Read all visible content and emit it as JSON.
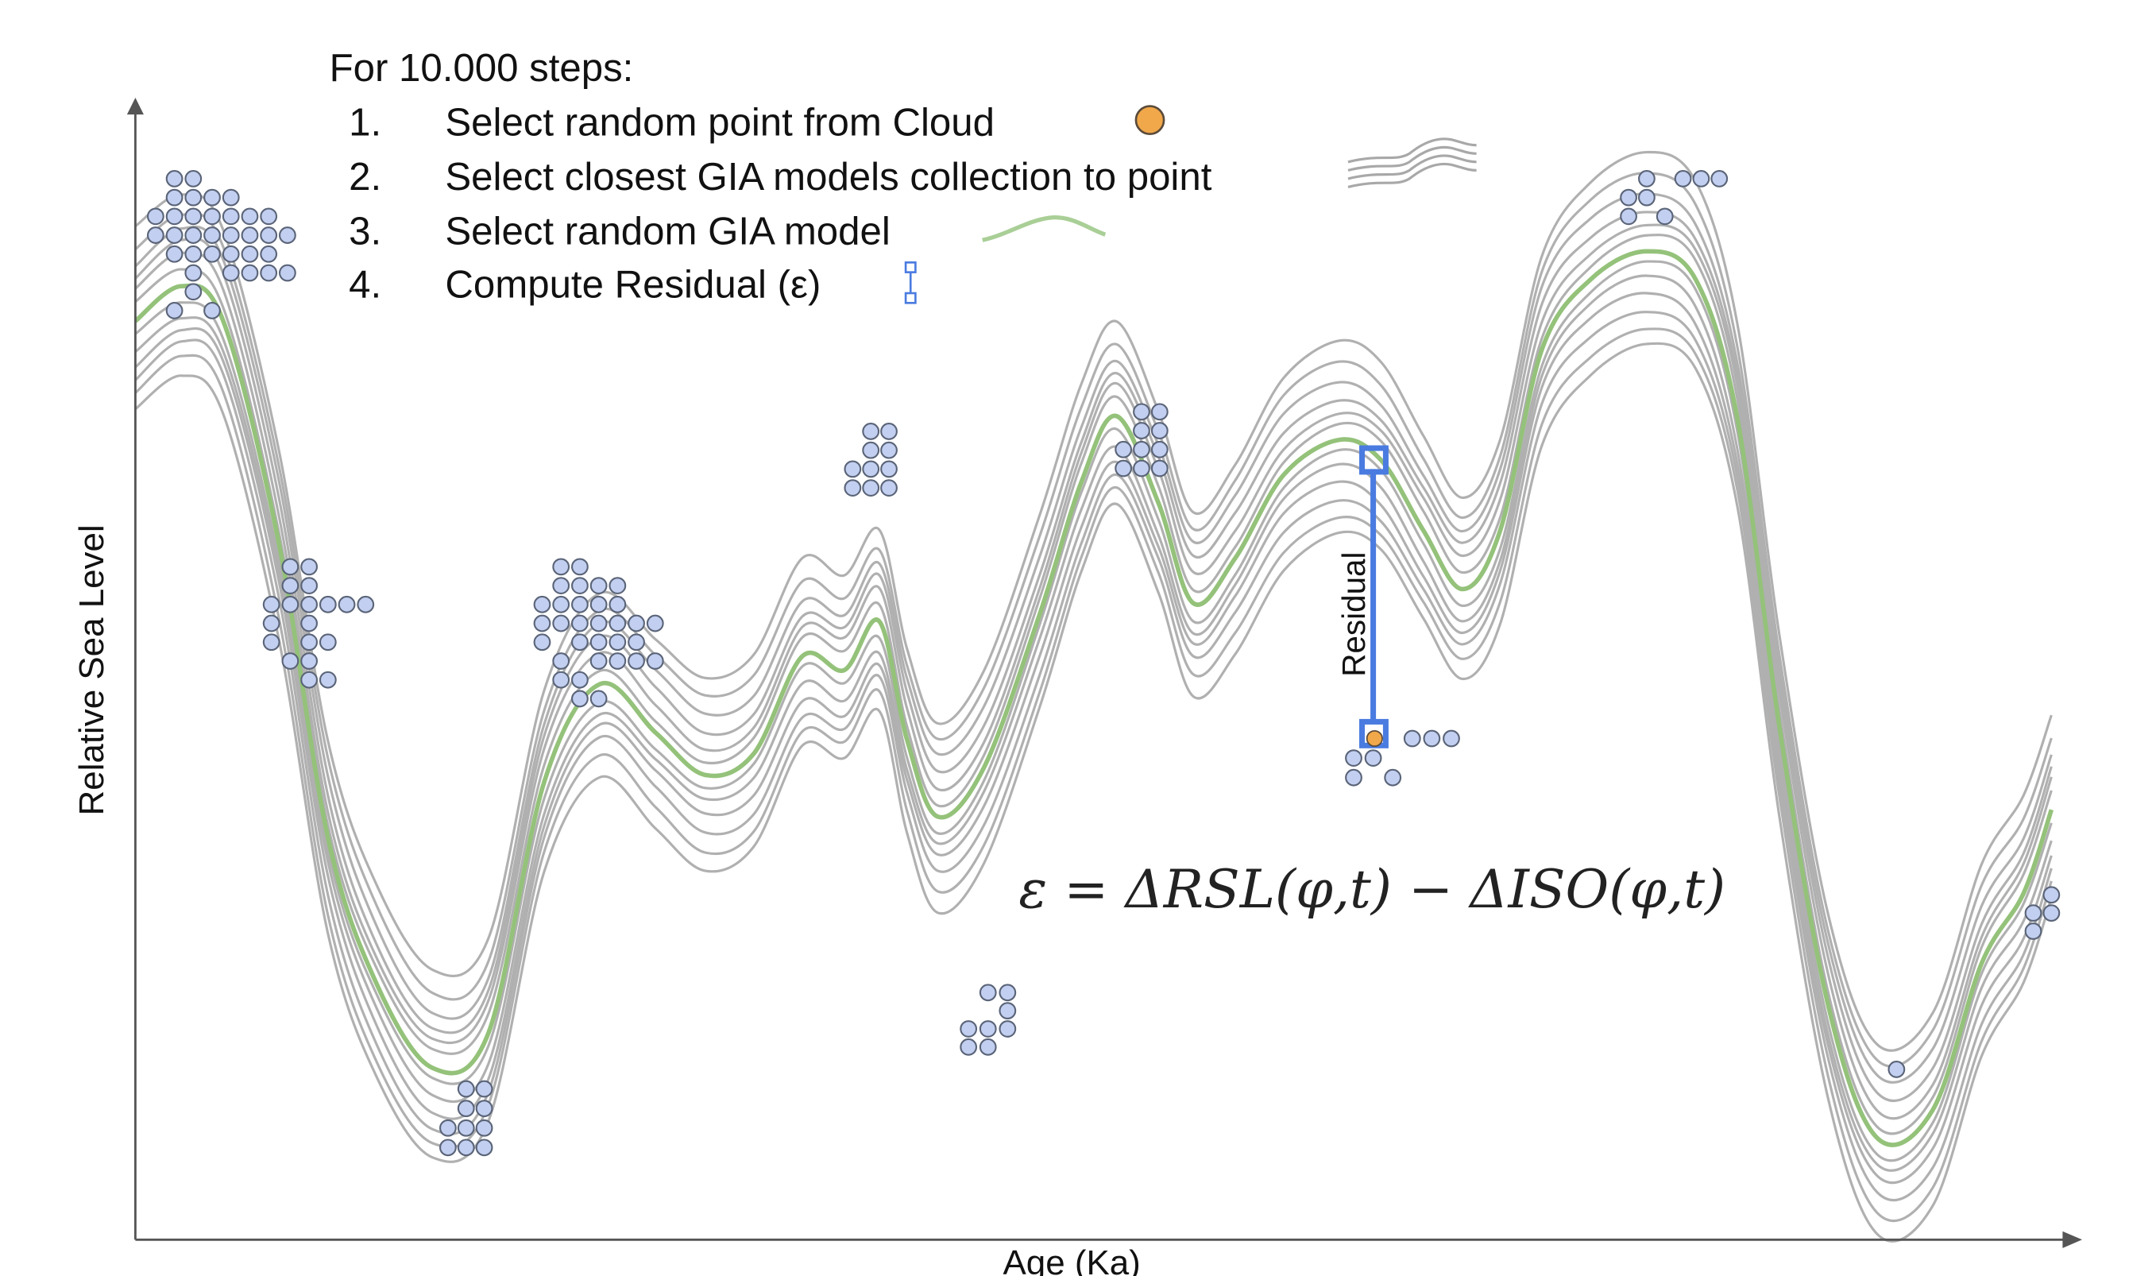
{
  "instructions": {
    "heading": "For 10.000 steps:",
    "steps": [
      {
        "num": "1.",
        "text": "Select random point from Cloud"
      },
      {
        "num": "2.",
        "text": "Select closest GIA models collection to point"
      },
      {
        "num": "3.",
        "text": "Select random GIA model"
      },
      {
        "num": "4.",
        "text": "Compute Residual (ε)"
      }
    ]
  },
  "axes": {
    "xlabel": "Age (Ka)",
    "ylabel": "Relative Sea Level"
  },
  "residual_label": "Residual",
  "equation": "ε = ΔRSL(φ,t) − ΔISO(φ,t)",
  "colors": {
    "cloud_point_fill": "#c3cff0",
    "cloud_point_stroke": "#5a6478",
    "selected_point": "#f0a84a",
    "model_gray": "#b0b0b0",
    "model_green": "#94c27a",
    "residual_blue": "#4a7be0",
    "axis": "#555555"
  }
}
